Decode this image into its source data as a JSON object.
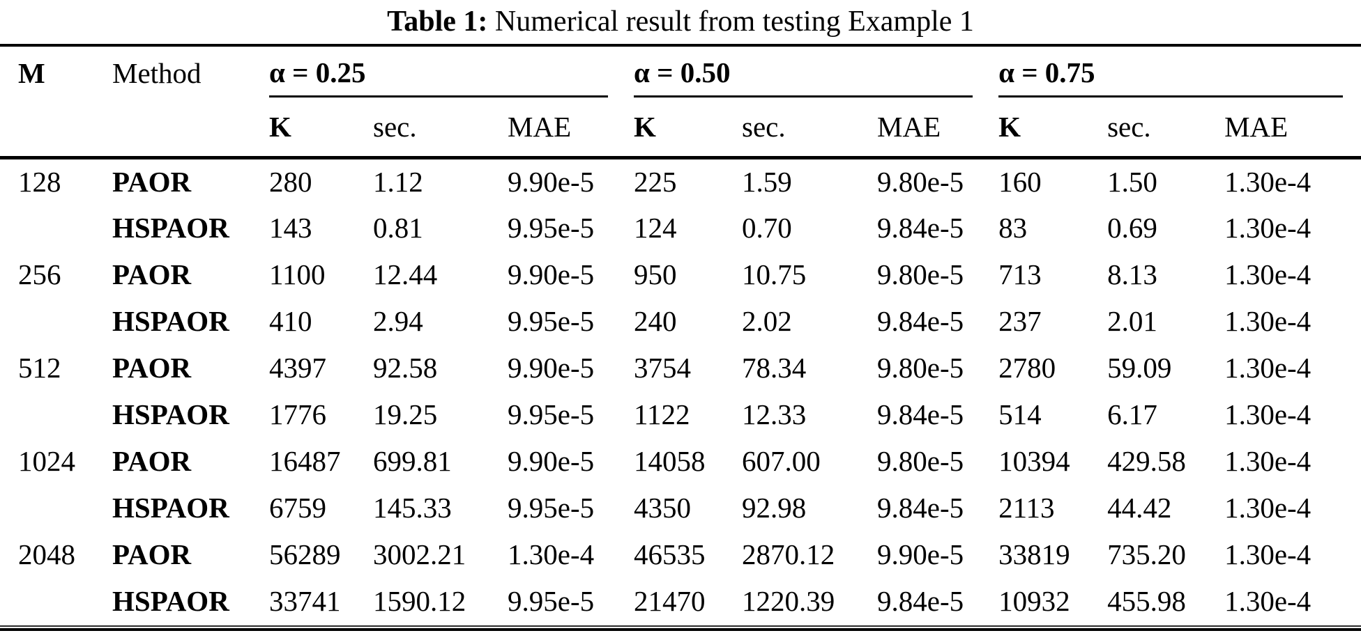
{
  "page": {
    "background": "#ffffff",
    "text_color": "#000000",
    "rule_color": "#000000"
  },
  "title": {
    "label": "Table 1:",
    "text": "Numerical result from testing Example 1"
  },
  "table": {
    "columns": {
      "m": "M",
      "method": "Method",
      "k": "K",
      "sec": "sec.",
      "mae": "MAE"
    },
    "groups": [
      {
        "label": "α = 0.25"
      },
      {
        "label": "α = 0.50"
      },
      {
        "label": "α = 0.75"
      }
    ],
    "rows": [
      {
        "m": "128",
        "method": "PAOR",
        "values": [
          "280",
          "1.12",
          "9.90e-5",
          "225",
          "1.59",
          "9.80e-5",
          "160",
          "1.50",
          "1.30e-4"
        ]
      },
      {
        "m": "",
        "method": "HSPAOR",
        "values": [
          "143",
          "0.81",
          "9.95e-5",
          "124",
          "0.70",
          "9.84e-5",
          "83",
          "0.69",
          "1.30e-4"
        ]
      },
      {
        "m": "256",
        "method": "PAOR",
        "values": [
          "1100",
          "12.44",
          "9.90e-5",
          "950",
          "10.75",
          "9.80e-5",
          "713",
          "8.13",
          "1.30e-4"
        ]
      },
      {
        "m": "",
        "method": "HSPAOR",
        "values": [
          "410",
          "2.94",
          "9.95e-5",
          "240",
          "2.02",
          "9.84e-5",
          "237",
          "2.01",
          "1.30e-4"
        ]
      },
      {
        "m": "512",
        "method": "PAOR",
        "values": [
          "4397",
          "92.58",
          "9.90e-5",
          "3754",
          "78.34",
          "9.80e-5",
          "2780",
          "59.09",
          "1.30e-4"
        ]
      },
      {
        "m": "",
        "method": "HSPAOR",
        "values": [
          "1776",
          "19.25",
          "9.95e-5",
          "1122",
          "12.33",
          "9.84e-5",
          "514",
          "6.17",
          "1.30e-4"
        ]
      },
      {
        "m": "1024",
        "method": "PAOR",
        "values": [
          "16487",
          "699.81",
          "9.90e-5",
          "14058",
          "607.00",
          "9.80e-5",
          "10394",
          "429.58",
          "1.30e-4"
        ]
      },
      {
        "m": "",
        "method": "HSPAOR",
        "values": [
          "6759",
          "145.33",
          "9.95e-5",
          "4350",
          "92.98",
          "9.84e-5",
          "2113",
          "44.42",
          "1.30e-4"
        ]
      },
      {
        "m": "2048",
        "method": "PAOR",
        "values": [
          "56289",
          "3002.21",
          "1.30e-4",
          "46535",
          "2870.12",
          "9.90e-5",
          "33819",
          "735.20",
          "1.30e-4"
        ]
      },
      {
        "m": "",
        "method": "HSPAOR",
        "values": [
          "33741",
          "1590.12",
          "9.95e-5",
          "21470",
          "1220.39",
          "9.84e-5",
          "10932",
          "455.98",
          "1.30e-4"
        ]
      }
    ]
  }
}
